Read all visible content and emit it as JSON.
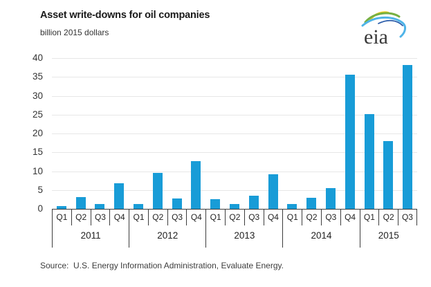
{
  "header": {
    "title": "Asset write-downs for oil companies",
    "subtitle": "billion 2015 dollars",
    "logo_text": "eia"
  },
  "source_note": "Source:  U.S. Energy Information Administration, Evaluate Energy.",
  "colors": {
    "bar": "#189cd7",
    "gridline": "#e7e7e7",
    "axis_line": "#3c3c3c",
    "text": "#333333",
    "logo_green": "#76b043",
    "logo_yellow": "#f2cf13",
    "logo_lightblue": "#4fb4e8",
    "logo_navy": "#2a5caa"
  },
  "chart_data": {
    "type": "bar",
    "title": "Asset write-downs for oil companies",
    "xlabel": "",
    "ylabel": "billion 2015 dollars",
    "ylim": [
      0,
      40
    ],
    "yticks": [
      0,
      5,
      10,
      15,
      20,
      25,
      30,
      35,
      40
    ],
    "grid": true,
    "legend": false,
    "categories": [
      "Q1",
      "Q2",
      "Q3",
      "Q4",
      "Q1",
      "Q2",
      "Q3",
      "Q4",
      "Q1",
      "Q2",
      "Q3",
      "Q4",
      "Q1",
      "Q2",
      "Q3",
      "Q4",
      "Q1",
      "Q2",
      "Q3"
    ],
    "year_groups": [
      {
        "label": "2011",
        "quarters": 4
      },
      {
        "label": "2012",
        "quarters": 4
      },
      {
        "label": "2013",
        "quarters": 4
      },
      {
        "label": "2014",
        "quarters": 4
      },
      {
        "label": "2015",
        "quarters": 3
      }
    ],
    "series": [
      {
        "name": "Asset write-downs",
        "values": [
          0.8,
          3.1,
          1.2,
          6.8,
          1.3,
          9.5,
          2.8,
          12.6,
          2.5,
          1.3,
          3.5,
          9.2,
          1.2,
          2.9,
          5.5,
          35.6,
          25.2,
          18.0,
          38.2
        ]
      }
    ]
  }
}
